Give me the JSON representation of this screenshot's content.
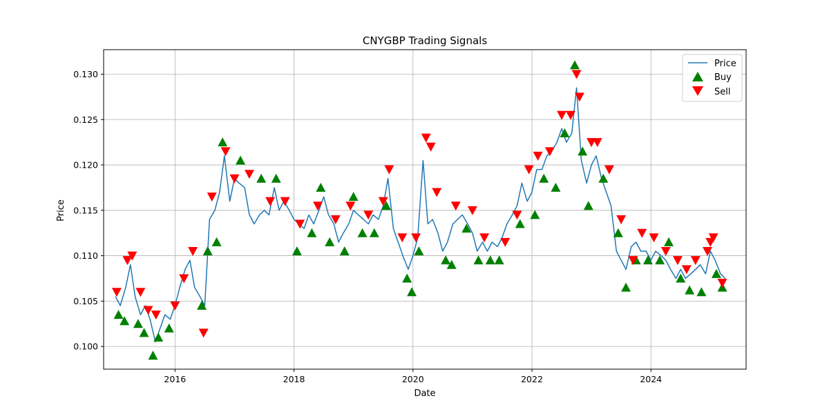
{
  "chart_data": {
    "type": "line",
    "title": "CNYGBP Trading Signals",
    "xlabel": "Date",
    "ylabel": "Price",
    "grid": true,
    "legend_position": "top-right",
    "xlim": [
      2014.8,
      2025.6
    ],
    "ylim": [
      0.0975,
      0.1327
    ],
    "x_ticks": [
      2016,
      2018,
      2020,
      2022,
      2024
    ],
    "x_tick_labels": [
      "2016",
      "2018",
      "2020",
      "2022",
      "2024"
    ],
    "y_ticks": [
      0.1,
      0.105,
      0.11,
      0.115,
      0.12,
      0.125,
      0.13
    ],
    "y_tick_labels": [
      "0.100",
      "0.105",
      "0.110",
      "0.115",
      "0.120",
      "0.125",
      "0.130"
    ],
    "colors": {
      "price": "#1f77b4",
      "buy": "#008000",
      "sell": "#ff0000",
      "grid": "#b0b0b0"
    },
    "legend": [
      {
        "key": "price",
        "label": "Price"
      },
      {
        "key": "buy",
        "label": "Buy"
      },
      {
        "key": "sell",
        "label": "Sell"
      }
    ],
    "series": [
      {
        "name": "Price",
        "x": [
          2015.0,
          2015.08,
          2015.17,
          2015.25,
          2015.33,
          2015.42,
          2015.5,
          2015.58,
          2015.67,
          2015.75,
          2015.83,
          2015.92,
          2016.0,
          2016.08,
          2016.17,
          2016.25,
          2016.33,
          2016.42,
          2016.5,
          2016.58,
          2016.67,
          2016.75,
          2016.83,
          2016.92,
          2017.0,
          2017.08,
          2017.17,
          2017.25,
          2017.33,
          2017.42,
          2017.5,
          2017.58,
          2017.67,
          2017.75,
          2017.83,
          2017.92,
          2018.0,
          2018.08,
          2018.17,
          2018.25,
          2018.33,
          2018.42,
          2018.5,
          2018.58,
          2018.67,
          2018.75,
          2018.83,
          2018.92,
          2019.0,
          2019.08,
          2019.17,
          2019.25,
          2019.33,
          2019.42,
          2019.5,
          2019.58,
          2019.67,
          2019.75,
          2019.83,
          2019.92,
          2020.0,
          2020.08,
          2020.17,
          2020.25,
          2020.33,
          2020.42,
          2020.5,
          2020.58,
          2020.67,
          2020.75,
          2020.83,
          2020.92,
          2021.0,
          2021.08,
          2021.17,
          2021.25,
          2021.33,
          2021.42,
          2021.5,
          2021.58,
          2021.67,
          2021.75,
          2021.83,
          2021.92,
          2022.0,
          2022.08,
          2022.17,
          2022.25,
          2022.33,
          2022.42,
          2022.5,
          2022.58,
          2022.67,
          2022.75,
          2022.83,
          2022.92,
          2023.0,
          2023.08,
          2023.17,
          2023.25,
          2023.33,
          2023.42,
          2023.5,
          2023.58,
          2023.67,
          2023.75,
          2023.83,
          2023.92,
          2024.0,
          2024.08,
          2024.17,
          2024.25,
          2024.33,
          2024.42,
          2024.5,
          2024.58,
          2024.67,
          2024.75,
          2024.83,
          2024.92,
          2025.0,
          2025.08,
          2025.17,
          2025.25
        ],
        "values": [
          0.1055,
          0.1045,
          0.1065,
          0.109,
          0.1055,
          0.1035,
          0.1045,
          0.103,
          0.1005,
          0.102,
          0.1035,
          0.103,
          0.1045,
          0.1065,
          0.1085,
          0.1095,
          0.1065,
          0.1055,
          0.1045,
          0.114,
          0.115,
          0.117,
          0.121,
          0.116,
          0.1185,
          0.118,
          0.1175,
          0.1145,
          0.1135,
          0.1145,
          0.115,
          0.1145,
          0.1175,
          0.115,
          0.116,
          0.115,
          0.114,
          0.1135,
          0.113,
          0.1145,
          0.1135,
          0.115,
          0.1165,
          0.1145,
          0.1135,
          0.1115,
          0.1125,
          0.1135,
          0.115,
          0.1145,
          0.114,
          0.1135,
          0.1145,
          0.114,
          0.1155,
          0.1185,
          0.113,
          0.1115,
          0.11,
          0.1085,
          0.11,
          0.112,
          0.1205,
          0.1135,
          0.114,
          0.1125,
          0.1105,
          0.1115,
          0.1135,
          0.114,
          0.1145,
          0.1135,
          0.1125,
          0.1105,
          0.1115,
          0.1105,
          0.1115,
          0.111,
          0.112,
          0.1135,
          0.1145,
          0.1155,
          0.118,
          0.116,
          0.117,
          0.1195,
          0.1195,
          0.121,
          0.1215,
          0.1225,
          0.124,
          0.1225,
          0.1235,
          0.1285,
          0.1205,
          0.118,
          0.12,
          0.121,
          0.1185,
          0.117,
          0.1155,
          0.1105,
          0.1095,
          0.1085,
          0.111,
          0.1115,
          0.1105,
          0.1105,
          0.1095,
          0.1105,
          0.11,
          0.1095,
          0.1085,
          0.1075,
          0.1085,
          0.1075,
          0.108,
          0.1085,
          0.109,
          0.108,
          0.1105,
          0.1095,
          0.108,
          0.1075
        ]
      },
      {
        "name": "Buy",
        "x": [
          2015.05,
          2015.15,
          2015.38,
          2015.48,
          2015.63,
          2015.72,
          2015.9,
          2016.45,
          2016.55,
          2016.7,
          2016.8,
          2017.1,
          2017.45,
          2017.7,
          2018.05,
          2018.3,
          2018.45,
          2018.6,
          2018.85,
          2019.0,
          2019.15,
          2019.35,
          2019.55,
          2019.9,
          2019.98,
          2020.1,
          2020.55,
          2020.65,
          2020.9,
          2021.1,
          2021.3,
          2021.45,
          2021.8,
          2022.05,
          2022.2,
          2022.4,
          2022.55,
          2022.72,
          2022.85,
          2022.95,
          2023.2,
          2023.45,
          2023.58,
          2023.75,
          2023.95,
          2024.15,
          2024.3,
          2024.5,
          2024.65,
          2024.85,
          2025.1,
          2025.2
        ],
        "values": [
          0.1035,
          0.1028,
          0.1025,
          0.1015,
          0.099,
          0.101,
          0.102,
          0.1045,
          0.1105,
          0.1115,
          0.1225,
          0.1205,
          0.1185,
          0.1185,
          0.1105,
          0.1125,
          0.1175,
          0.1115,
          0.1105,
          0.1165,
          0.1125,
          0.1125,
          0.1155,
          0.1075,
          0.106,
          0.1105,
          0.1095,
          0.109,
          0.113,
          0.1095,
          0.1095,
          0.1095,
          0.1135,
          0.1145,
          0.1185,
          0.1175,
          0.1235,
          0.131,
          0.1215,
          0.1155,
          0.1185,
          0.1125,
          0.1065,
          0.1095,
          0.1095,
          0.1095,
          0.1115,
          0.1075,
          0.1062,
          0.106,
          0.108,
          0.1065
        ]
      },
      {
        "name": "Sell",
        "x": [
          2015.02,
          2015.2,
          2015.28,
          2015.42,
          2015.55,
          2015.68,
          2016.0,
          2016.15,
          2016.3,
          2016.48,
          2016.62,
          2016.85,
          2017.0,
          2017.25,
          2017.6,
          2017.85,
          2018.1,
          2018.4,
          2018.7,
          2018.95,
          2019.25,
          2019.5,
          2019.6,
          2019.82,
          2020.05,
          2020.22,
          2020.3,
          2020.4,
          2020.72,
          2021.0,
          2021.2,
          2021.55,
          2021.75,
          2021.95,
          2022.1,
          2022.3,
          2022.5,
          2022.65,
          2022.75,
          2022.8,
          2023.0,
          2023.1,
          2023.3,
          2023.5,
          2023.7,
          2023.85,
          2024.05,
          2024.25,
          2024.45,
          2024.6,
          2024.75,
          2024.95,
          2025.0,
          2025.05,
          2025.2
        ],
        "values": [
          0.106,
          0.1095,
          0.11,
          0.106,
          0.104,
          0.1035,
          0.1045,
          0.1075,
          0.1105,
          0.1015,
          0.1165,
          0.1215,
          0.1185,
          0.119,
          0.116,
          0.116,
          0.1135,
          0.1155,
          0.114,
          0.1155,
          0.1145,
          0.116,
          0.1195,
          0.112,
          0.112,
          0.123,
          0.122,
          0.117,
          0.1155,
          0.115,
          0.112,
          0.1115,
          0.1145,
          0.1195,
          0.121,
          0.1215,
          0.1255,
          0.1255,
          0.13,
          0.1275,
          0.1225,
          0.1225,
          0.1195,
          0.114,
          0.1095,
          0.1125,
          0.112,
          0.1105,
          0.1095,
          0.1085,
          0.1095,
          0.1105,
          0.1115,
          0.112,
          0.107
        ]
      }
    ]
  }
}
